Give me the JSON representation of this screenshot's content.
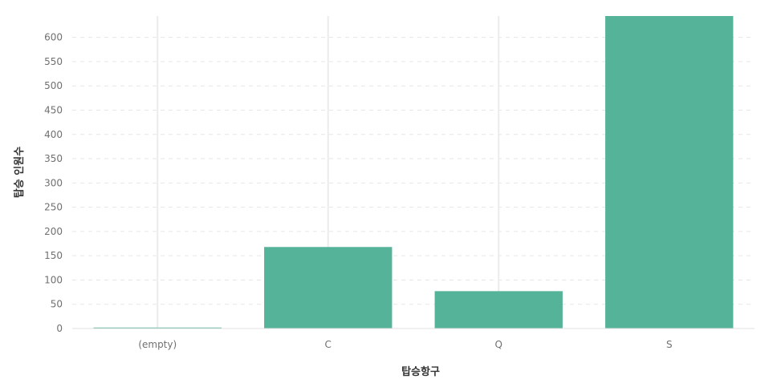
{
  "chart_data": {
    "type": "bar",
    "categories": [
      "(empty)",
      "C",
      "Q",
      "S"
    ],
    "values": [
      2,
      168,
      77,
      644
    ],
    "xlabel": "탑승항구",
    "ylabel": "탑승 인원수",
    "ylim": [
      0,
      644
    ],
    "yticks": [
      0,
      50,
      100,
      150,
      200,
      250,
      300,
      350,
      400,
      450,
      500,
      550,
      600
    ],
    "grid": true,
    "legend": "none",
    "colors": {
      "bar": "#55b399",
      "grid": "#e6e6e6",
      "axis": "#e0e0e0"
    }
  }
}
